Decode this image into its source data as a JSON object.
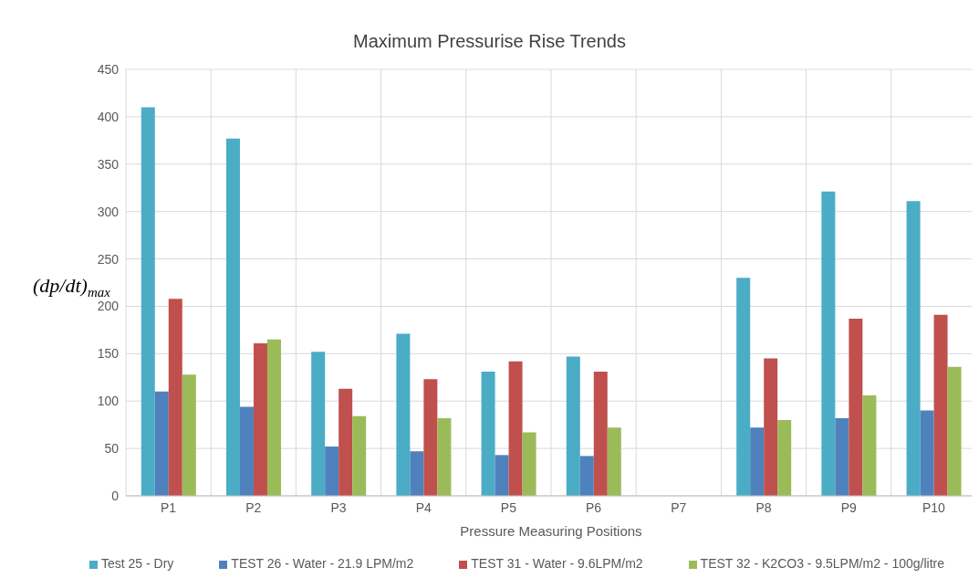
{
  "chart_data": {
    "type": "bar",
    "title": "Maximum Pressurise Rise Trends",
    "xlabel": "Pressure Measuring Positions",
    "ylabel": "(dp/dt)$_{max}$",
    "categories": [
      "P1",
      "P2",
      "P3",
      "P4",
      "P5",
      "P6",
      "P7",
      "P8",
      "P9",
      "P10"
    ],
    "series": [
      {
        "name": "Test  25 - Dry",
        "color": "#4bacc6",
        "values": [
          410,
          377,
          152,
          171,
          131,
          147,
          null,
          230,
          321,
          311
        ]
      },
      {
        "name": "TEST 26 - Water - 21.9 LPM/m2",
        "color": "#4f81bd",
        "values": [
          110,
          94,
          52,
          47,
          43,
          42,
          null,
          72,
          82,
          90
        ]
      },
      {
        "name": "TEST 31 - Water - 9.6LPM/m2",
        "color": "#c0504d",
        "values": [
          208,
          161,
          113,
          123,
          142,
          131,
          null,
          145,
          187,
          191
        ]
      },
      {
        "name": "TEST 32 - K2CO3 - 9.5LPM/m2 - 100g/litre",
        "color": "#9bbb59",
        "values": [
          128,
          165,
          84,
          82,
          67,
          72,
          null,
          80,
          106,
          136
        ]
      }
    ],
    "ylim": [
      0,
      450
    ],
    "yticks": [
      0,
      50,
      100,
      150,
      200,
      250,
      300,
      350,
      400,
      450
    ],
    "grid": true,
    "legend": "bottom"
  }
}
